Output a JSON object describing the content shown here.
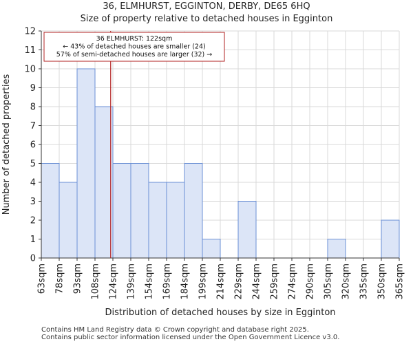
{
  "header": {
    "title_line1": "36, ELMHURST, EGGINTON, DERBY, DE65 6HQ",
    "title_line2": "Size of property relative to detached houses in Egginton"
  },
  "chart_data": {
    "type": "bar",
    "title": "36, ELMHURST, EGGINTON, DERBY, DE65 6HQ — Size of property relative to detached houses in Egginton",
    "xlabel": "Distribution of detached houses by size in Egginton",
    "ylabel": "Number of detached properties",
    "bin_edges": [
      "63sqm",
      "78sqm",
      "93sqm",
      "108sqm",
      "124sqm",
      "139sqm",
      "154sqm",
      "169sqm",
      "184sqm",
      "199sqm",
      "214sqm",
      "229sqm",
      "244sqm",
      "259sqm",
      "274sqm",
      "290sqm",
      "305sqm",
      "320sqm",
      "335sqm",
      "350sqm",
      "365sqm"
    ],
    "values": [
      5,
      4,
      10,
      8,
      5,
      5,
      4,
      4,
      5,
      1,
      0,
      3,
      0,
      0,
      0,
      0,
      1,
      0,
      0,
      2
    ],
    "ylim": [
      0,
      12
    ],
    "yticks": [
      0,
      1,
      2,
      3,
      4,
      5,
      6,
      7,
      8,
      9,
      10,
      11,
      12
    ],
    "grid": true,
    "bar_fill": "#dce5f7",
    "bar_stroke": "#6a8fd4",
    "marker": {
      "value_sqm": 122,
      "color": "#b22222",
      "label_line1": "36 ELMHURST: 122sqm",
      "label_line2": "← 43% of detached houses are smaller (24)",
      "label_line3": "57% of semi-detached houses are larger (32) →"
    }
  },
  "footer": {
    "line1": "Contains HM Land Registry data © Crown copyright and database right 2025.",
    "line2": "Contains public sector information licensed under the Open Government Licence v3.0."
  }
}
